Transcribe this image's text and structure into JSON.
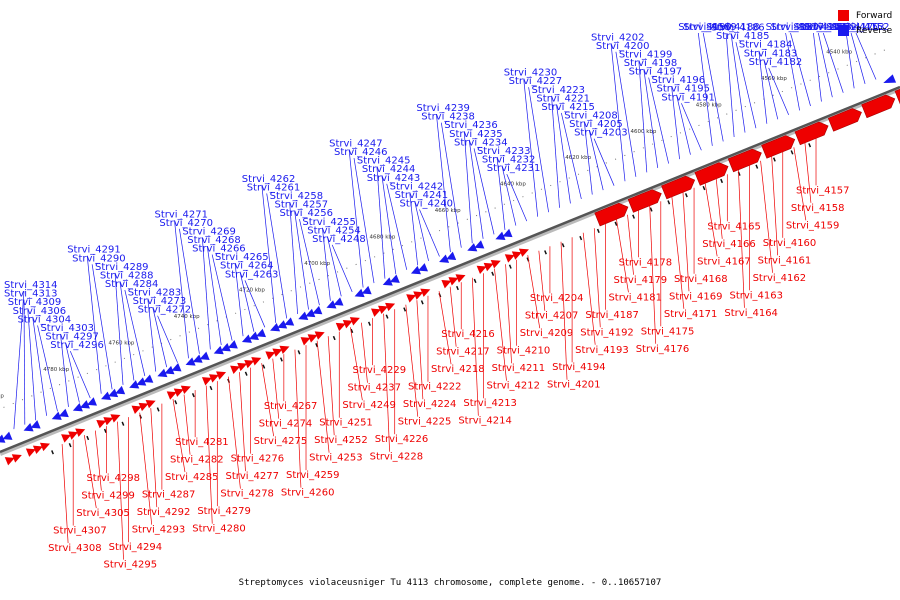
{
  "legend": {
    "forward_label": "Forward",
    "reverse_label": "Reverse",
    "forward_color": "#ee0000",
    "reverse_color": "#1a1aee"
  },
  "caption": "Streptomyces violaceusniger Tu 4113 chromosome, complete genome. - 0..10657107",
  "kbp_ticks": [
    "4540 kbp",
    "4560 kbp",
    "4580 kbp",
    "4600 kbp",
    "4620 kbp",
    "4640 kbp",
    "4660 kbp",
    "4680 kbp",
    "4700 kbp",
    "4720 kbp",
    "4740 kbp",
    "4760 kbp",
    "4780 kbp",
    "4800 kbp"
  ],
  "reverse_labels": [
    "Strvi_4152",
    "Strvi_4153",
    "Strvi_4170",
    "Strvi_4172",
    "Strvi_4173",
    "Strvi_4174",
    "Strvi_4177",
    "Strvi_4180",
    "Strvi_4182",
    "Strvi_4183",
    "Strvi_4184",
    "Strvi_4185",
    "Strvi_4186",
    "Strvi_4188",
    "Strvi_4189",
    "Strvi_4190",
    "Strvi_4191",
    "Strvi_4195",
    "Strvi_4196",
    "Strvi_4197",
    "Strvi_4198",
    "Strvi_4199",
    "Strvi_4200",
    "Strvi_4202",
    "Strvi_4203",
    "Strvi_4205",
    "Strvi_4208",
    "Strvi_4215",
    "Strvi_4221",
    "Strvi_4223",
    "Strvi_4227",
    "Strvi_4230",
    "Strvi_4231",
    "Strvi_4232",
    "Strvi_4233",
    "Strvi_4234",
    "Strvi_4235",
    "Strvi_4236",
    "Strvi_4238",
    "Strvi_4239",
    "Strvi_4240",
    "Strvi_4241",
    "Strvi_4242",
    "Strvi_4243",
    "Strvi_4244",
    "Strvi_4245",
    "Strvi_4246",
    "Strvi_4247",
    "Strvi_4248",
    "Strvi_4254",
    "Strvi_4255",
    "Strvi_4256",
    "Strvi_4257",
    "Strvi_4258",
    "Strvi_4261",
    "Strvi_4262",
    "Strvi_4263",
    "Strvi_4264",
    "Strvi_4265",
    "Strvi_4266",
    "Strvi_4268",
    "Strvi_4269",
    "Strvi_4270",
    "Strvi_4271",
    "Strvi_4272",
    "Strvi_4273",
    "Strvi_4283",
    "Strvi_4284",
    "Strvi_4288",
    "Strvi_4289",
    "Strvi_4290",
    "Strvi_4291",
    "Strvi_4296",
    "Strvi_4297",
    "Strvi_4303",
    "Strvi_4304",
    "Strvi_4306",
    "Strvi_4309",
    "Strvi_4313",
    "Strvi_4314"
  ],
  "forward_labels": [
    "Strvi_4157",
    "Strvi_4158",
    "Strvi_4159",
    "Strvi_4160",
    "Strvi_4161",
    "Strvi_4162",
    "Strvi_4163",
    "Strvi_4164",
    "Strvi_4165",
    "Strvi_4166",
    "Strvi_4167",
    "Strvi_4168",
    "Strvi_4169",
    "Strvi_4171",
    "Strvi_4175",
    "Strvi_4176",
    "Strvi_4178",
    "Strvi_4179",
    "Strvi_4181",
    "Strvi_4187",
    "Strvi_4192",
    "Strvi_4193",
    "Strvi_4194",
    "Strvi_4201",
    "Strvi_4204",
    "Strvi_4207",
    "Strvi_4209",
    "Strvi_4210",
    "Strvi_4211",
    "Strvi_4212",
    "Strvi_4213",
    "Strvi_4214",
    "Strvi_4216",
    "Strvi_4217",
    "Strvi_4218",
    "Strvi_4222",
    "Strvi_4224",
    "Strvi_4225",
    "Strvi_4226",
    "Strvi_4228",
    "Strvi_4229",
    "Strvi_4237",
    "Strvi_4249",
    "Strvi_4251",
    "Strvi_4252",
    "Strvi_4253",
    "Strvi_4259",
    "Strvi_4260",
    "Strvi_4267",
    "Strvi_4274",
    "Strvi_4275",
    "Strvi_4276",
    "Strvi_4277",
    "Strvi_4278",
    "Strvi_4279",
    "Strvi_4280",
    "Strvi_4281",
    "Strvi_4282",
    "Strvi_4285",
    "Strvi_4287",
    "Strvi_4292",
    "Strvi_4293",
    "Strvi_4294",
    "Strvi_4295",
    "Strvi_4298",
    "Strvi_4299",
    "Strvi_4305",
    "Strvi_4307",
    "Strvi_4308"
  ]
}
